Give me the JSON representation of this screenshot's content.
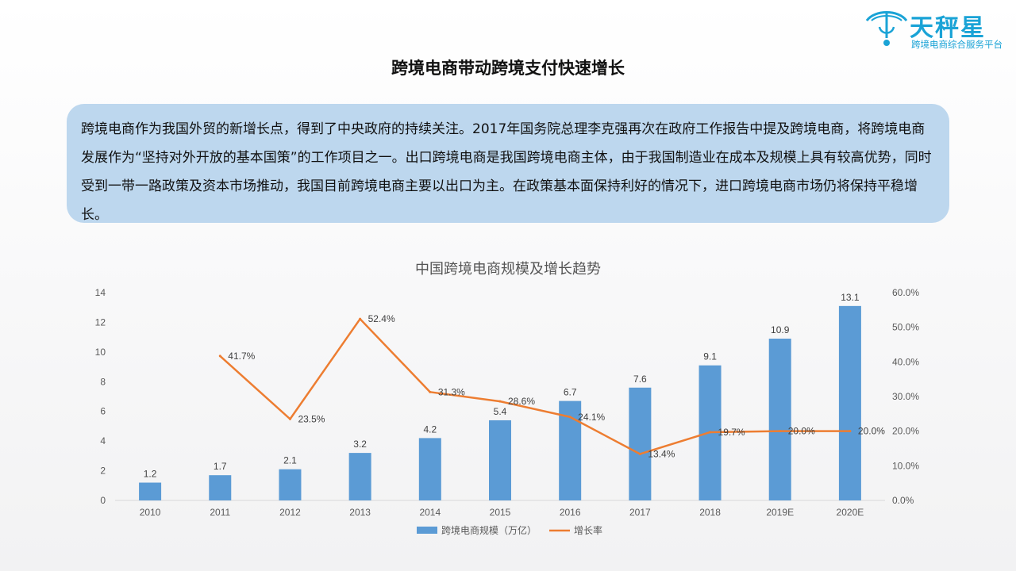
{
  "logo": {
    "name": "天秤星",
    "tagline": "跨境电商综合服务平台",
    "color": "#1aa3d6"
  },
  "page_title": "跨境电商带动跨境支付快速增长",
  "intro": "跨境电商作为我国外贸的新增长点，得到了中央政府的持续关注。2017年国务院总理李克强再次在政府工作报告中提及跨境电商，将跨境电商发展作为“坚持对外开放的基本国策”的工作项目之一。出口跨境电商是我国跨境电商主体，由于我国制造业在成本及规模上具有较高优势，同时受到一带一路政策及资本市场推动，我国目前跨境电商主要以出口为主。在政策基本面保持利好的情况下，进口跨境电商市场仍将保持平稳增长。",
  "colors": {
    "bar": "#5b9bd5",
    "line": "#ed7d31",
    "intro_bg": "#bdd7ee"
  },
  "chart_data": {
    "type": "bar+line",
    "title": "中国跨境电商规模及增长趋势",
    "categories": [
      "2010",
      "2011",
      "2012",
      "2013",
      "2014",
      "2015",
      "2016",
      "2017",
      "2018",
      "2019E",
      "2020E"
    ],
    "series": [
      {
        "name": "跨境电商规模（万亿）",
        "type": "bar",
        "axis": "left",
        "values": [
          1.2,
          1.7,
          2.1,
          3.2,
          4.2,
          5.4,
          6.7,
          7.6,
          9.1,
          10.9,
          13.1
        ],
        "labels": [
          "1.2",
          "1.7",
          "2.1",
          "3.2",
          "4.2",
          "5.4",
          "6.7",
          "7.6",
          "9.1",
          "10.9",
          "13.1"
        ]
      },
      {
        "name": "增长率",
        "type": "line",
        "axis": "right",
        "values": [
          null,
          41.7,
          23.5,
          52.4,
          31.3,
          28.6,
          24.1,
          13.4,
          19.7,
          20.0,
          20.0
        ],
        "labels": [
          "",
          "41.7%",
          "23.5%",
          "52.4%",
          "31.3%",
          "28.6%",
          "24.1%",
          "13.4%",
          "19.7%",
          "20.0%",
          "20.0%"
        ]
      }
    ],
    "y_left": {
      "min": 0,
      "max": 14,
      "ticks": [
        "0",
        "2",
        "4",
        "6",
        "8",
        "10",
        "12",
        "14"
      ]
    },
    "y_right": {
      "min": 0,
      "max": 60,
      "ticks": [
        "0.0%",
        "10.0%",
        "20.0%",
        "30.0%",
        "40.0%",
        "50.0%",
        "60.0%"
      ]
    },
    "grid": false,
    "legend_position": "bottom"
  }
}
